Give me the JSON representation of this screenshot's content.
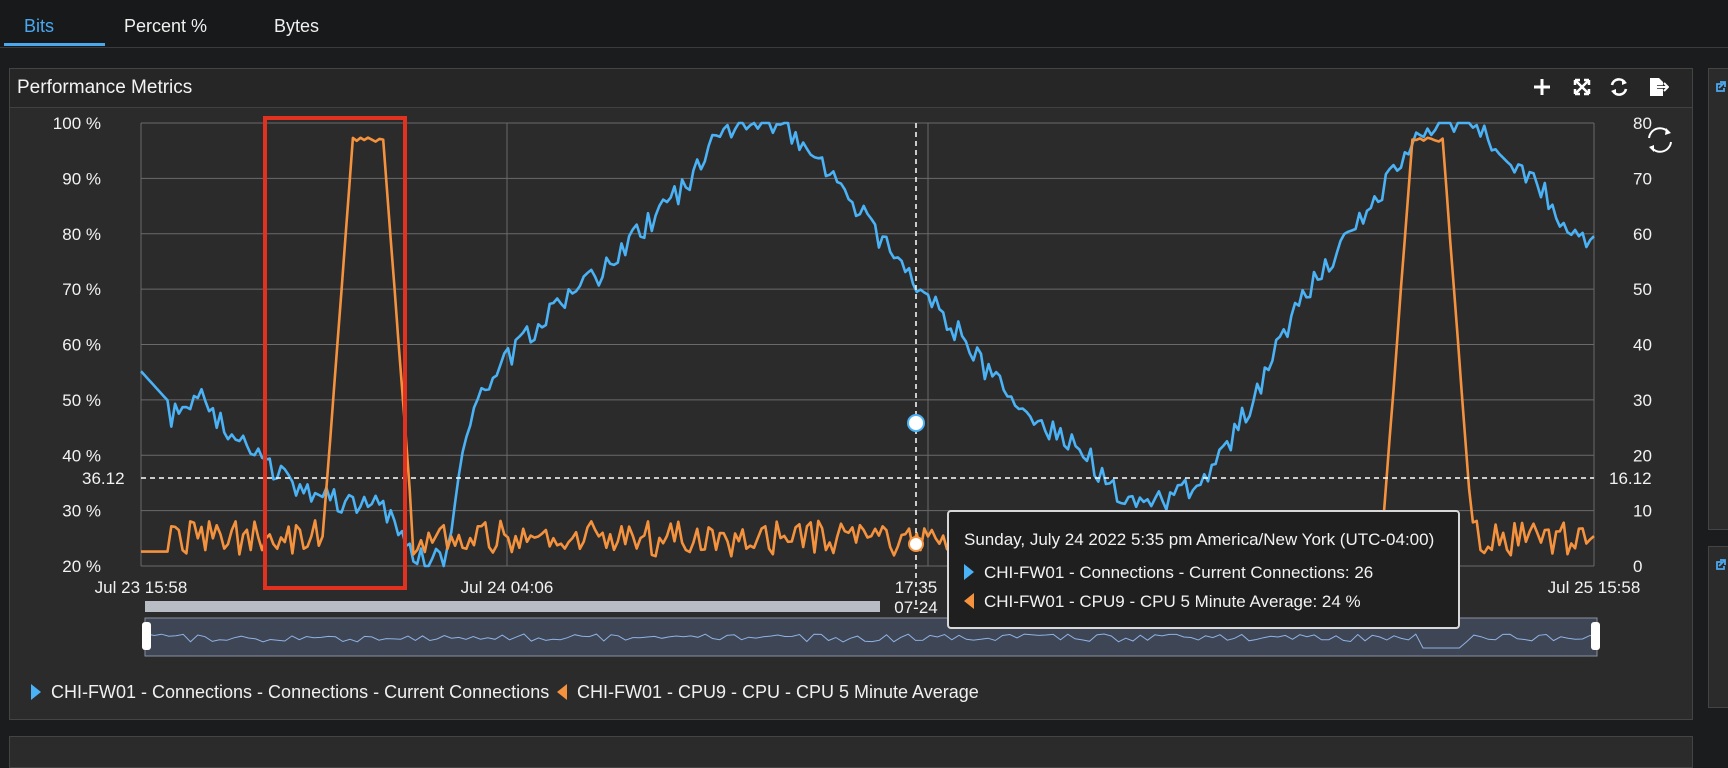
{
  "tabs": [
    {
      "label": "Bits",
      "active": true
    },
    {
      "label": "Percent %",
      "active": false
    },
    {
      "label": "Bytes",
      "active": false
    }
  ],
  "panel": {
    "title": "Performance Metrics",
    "icons": [
      "plus-icon",
      "expand-icon",
      "refresh-icon",
      "export-icon"
    ]
  },
  "colors": {
    "accent": "#4aa8ef",
    "series_blue": "#4ab2f5",
    "series_orange": "#f5923e",
    "highlight_box": "#e0321e"
  },
  "chart_data": {
    "type": "line",
    "title": "",
    "x_range": [
      "Jul 23 15:58",
      "Jul 25 15:58"
    ],
    "x_ticks": [
      "Jul 23 15:58",
      "Jul 24 04:06",
      "Jul 25 15:58"
    ],
    "y_left_ticks": [
      "100 %",
      "90 %",
      "80 %",
      "70 %",
      "60 %",
      "50 %",
      "40 %",
      "30 %",
      "20 %"
    ],
    "y_left_range": [
      20,
      100
    ],
    "y_right_ticks": [
      "80",
      "70",
      "60",
      "50",
      "40",
      "30",
      "20",
      "10",
      "0"
    ],
    "y_right_range": [
      0,
      80
    ],
    "threshold": {
      "left_label": "36.12",
      "right_label": "16.12"
    },
    "crosshair": {
      "time_label": "17:35",
      "date_label": "07-24"
    },
    "grid": true,
    "series": [
      {
        "name": "CHI-FW01 - Connections - Connections - Current Connections",
        "axis": "right",
        "color": "#4ab2f5",
        "x": [
          0,
          1,
          2,
          3,
          4,
          5,
          6,
          7,
          8,
          9,
          10,
          11,
          12,
          13,
          14,
          15,
          16,
          17,
          18,
          19,
          20,
          21,
          22,
          23,
          24,
          25,
          26,
          27,
          28,
          29,
          30,
          31,
          32,
          33,
          34,
          35,
          36,
          37,
          38,
          39,
          40,
          41,
          42,
          43,
          44,
          45,
          46,
          47,
          48
        ],
        "values": [
          33,
          27,
          30,
          24,
          19,
          15,
          13,
          11,
          11,
          1,
          1,
          30,
          37,
          43,
          48,
          52,
          58,
          63,
          69,
          77,
          80,
          80,
          76,
          69,
          62,
          55,
          49,
          42,
          35,
          28,
          25,
          22,
          14,
          12,
          12,
          15,
          23,
          33,
          45,
          53,
          61,
          68,
          76,
          80,
          80,
          75,
          70,
          62,
          58
        ]
      },
      {
        "name": "CHI-FW01 - CPU9 - CPU - CPU 5 Minute Average",
        "axis": "left",
        "color": "#f5923e",
        "x": [
          0,
          1,
          2,
          3,
          4,
          5,
          6,
          7,
          8,
          9,
          10,
          11,
          12,
          13,
          14,
          15,
          16,
          17,
          18,
          19,
          20,
          21,
          22,
          23,
          24,
          25,
          26,
          27,
          28,
          29,
          30,
          31,
          32,
          33,
          34,
          35,
          36,
          37,
          38,
          39,
          40,
          41,
          42,
          43,
          44,
          45,
          46,
          47,
          48
        ],
        "values": [
          25,
          25,
          25,
          25,
          25,
          25,
          25,
          97,
          97,
          25,
          25,
          25,
          25,
          25,
          25,
          25,
          25,
          25,
          25,
          25,
          25,
          25,
          25,
          25,
          25,
          25,
          25,
          25,
          25,
          25,
          25,
          25,
          25,
          25,
          25,
          25,
          25,
          25,
          25,
          25,
          25,
          25,
          97,
          97,
          25,
          25,
          25,
          25,
          25
        ]
      }
    ],
    "tooltip": {
      "title": "Sunday, July 24 2022 5:35 pm America/New York (UTC-04:00)",
      "rows": [
        {
          "text": "CHI-FW01 - Connections - Current Connections: 26",
          "color": "#4ab2f5"
        },
        {
          "text": "CHI-FW01 - CPU9 - CPU 5 Minute Average: 24 %",
          "color": "#f5923e"
        }
      ]
    },
    "legend": [
      {
        "label": "CHI-FW01 - Connections - Connections - Current Connections",
        "color": "#4ab2f5"
      },
      {
        "label": "CHI-FW01 - CPU9 - CPU - CPU 5 Minute Average",
        "color": "#f5923e"
      }
    ]
  }
}
